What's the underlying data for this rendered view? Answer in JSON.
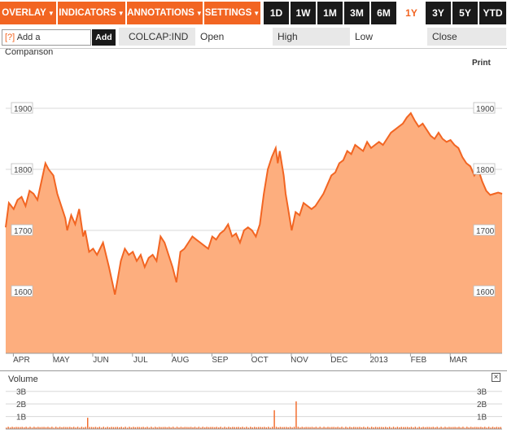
{
  "toolbar": {
    "menus": [
      {
        "label": "OVERLAY"
      },
      {
        "label": "INDICATORS"
      },
      {
        "label": "ANNOTATIONS"
      },
      {
        "label": "SETTINGS"
      }
    ],
    "ranges": [
      {
        "label": "1D"
      },
      {
        "label": "1W"
      },
      {
        "label": "1M"
      },
      {
        "label": "3M"
      },
      {
        "label": "6M"
      },
      {
        "label": "1Y"
      },
      {
        "label": "3Y"
      },
      {
        "label": "5Y"
      },
      {
        "label": "YTD"
      }
    ],
    "active_range": "1Y",
    "arrow": "▼"
  },
  "comparison": {
    "help": "[?]",
    "label": "Add a Comparison",
    "add_label": "Add"
  },
  "quote": {
    "ticker": "COLCAP:IND",
    "open_label": "Open",
    "high_label": "High",
    "low_label": "Low",
    "close_label": "Close"
  },
  "print_label": "Print",
  "volume_label": "Volume",
  "close_icon": "close-icon",
  "colors": {
    "accent": "#f26522",
    "area_fill": "#fdae7e",
    "line": "#f26522",
    "dark": "#1a1a1a"
  },
  "chart_data": [
    {
      "type": "area",
      "title": "",
      "xlabel": "",
      "ylabel": "",
      "x_ticks": [
        "APR",
        "MAY",
        "JUN",
        "JUL",
        "AUG",
        "SEP",
        "OCT",
        "NOV",
        "DEC",
        "2013",
        "FEB",
        "MAR"
      ],
      "y_ticks": [
        1600,
        1700,
        1800,
        1900
      ],
      "ylim": [
        1500,
        1950
      ],
      "grid": true,
      "x_range": [
        0,
        12.5
      ],
      "x_unit": "months from start of April 2012",
      "x": [
        0.0,
        0.08,
        0.2,
        0.3,
        0.4,
        0.5,
        0.6,
        0.7,
        0.8,
        0.9,
        1.0,
        1.08,
        1.2,
        1.3,
        1.4,
        1.5,
        1.55,
        1.65,
        1.75,
        1.85,
        1.95,
        2.0,
        2.1,
        2.2,
        2.3,
        2.45,
        2.6,
        2.7,
        2.75,
        2.82,
        2.9,
        3.0,
        3.1,
        3.2,
        3.3,
        3.4,
        3.5,
        3.6,
        3.7,
        3.8,
        3.9,
        4.0,
        4.1,
        4.2,
        4.3,
        4.4,
        4.5,
        4.6,
        4.7,
        4.8,
        4.9,
        5.0,
        5.1,
        5.2,
        5.3,
        5.4,
        5.5,
        5.6,
        5.7,
        5.8,
        5.9,
        6.0,
        6.1,
        6.2,
        6.3,
        6.4,
        6.5,
        6.6,
        6.7,
        6.8,
        6.85,
        6.9,
        7.0,
        7.05,
        7.1,
        7.2,
        7.3,
        7.4,
        7.5,
        7.6,
        7.7,
        7.8,
        7.9,
        8.0,
        8.1,
        8.2,
        8.3,
        8.4,
        8.5,
        8.6,
        8.7,
        8.8,
        8.9,
        9.0,
        9.1,
        9.2,
        9.3,
        9.4,
        9.5,
        9.6,
        9.7,
        9.8,
        9.9,
        10.0,
        10.1,
        10.2,
        10.3,
        10.4,
        10.5,
        10.6,
        10.7,
        10.8,
        10.9,
        11.0,
        11.1,
        11.2,
        11.3,
        11.4,
        11.5,
        11.6,
        11.7,
        11.8,
        11.9,
        12.0,
        12.1,
        12.2,
        12.3,
        12.4,
        12.5
      ],
      "y": [
        1705,
        1745,
        1735,
        1750,
        1755,
        1740,
        1765,
        1760,
        1750,
        1780,
        1810,
        1800,
        1790,
        1760,
        1740,
        1720,
        1700,
        1725,
        1710,
        1735,
        1690,
        1700,
        1665,
        1670,
        1660,
        1680,
        1640,
        1610,
        1595,
        1620,
        1650,
        1670,
        1660,
        1665,
        1650,
        1660,
        1640,
        1655,
        1660,
        1650,
        1690,
        1680,
        1660,
        1640,
        1615,
        1665,
        1670,
        1680,
        1690,
        1685,
        1680,
        1675,
        1670,
        1690,
        1685,
        1695,
        1700,
        1710,
        1690,
        1695,
        1680,
        1700,
        1705,
        1700,
        1690,
        1710,
        1760,
        1800,
        1820,
        1835,
        1810,
        1830,
        1790,
        1760,
        1740,
        1700,
        1730,
        1725,
        1745,
        1740,
        1735,
        1740,
        1750,
        1760,
        1775,
        1790,
        1795,
        1810,
        1815,
        1830,
        1825,
        1840,
        1835,
        1830,
        1845,
        1835,
        1840,
        1845,
        1840,
        1850,
        1860,
        1865,
        1870,
        1875,
        1885,
        1892,
        1880,
        1870,
        1875,
        1865,
        1855,
        1850,
        1860,
        1850,
        1845,
        1848,
        1840,
        1835,
        1820,
        1810,
        1805,
        1790,
        1800,
        1780,
        1765,
        1758,
        1760,
        1762,
        1760
      ]
    },
    {
      "type": "bar",
      "title": "",
      "y_ticks": [
        "1B",
        "2B",
        "3B"
      ],
      "ylim": [
        0,
        3.5
      ],
      "unit": "billions",
      "x_range": [
        0,
        12.5
      ],
      "baseline_volume": 0.18,
      "spikes": [
        {
          "x": 2.05,
          "value": 0.9
        },
        {
          "x": 6.75,
          "value": 1.5
        },
        {
          "x": 7.3,
          "value": 2.2
        }
      ]
    }
  ]
}
